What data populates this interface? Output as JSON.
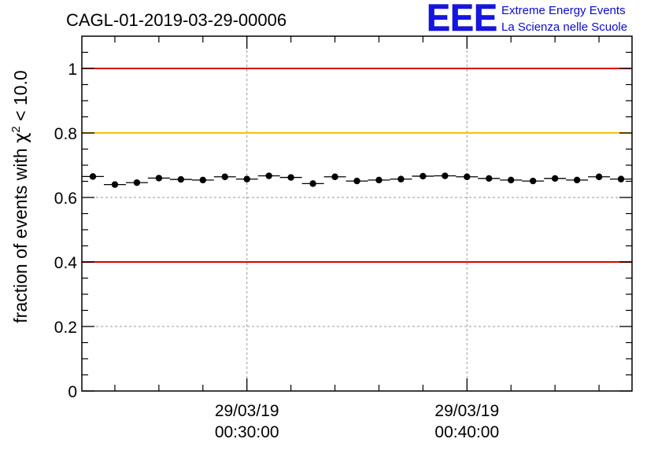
{
  "header": {
    "title": "CAGL-01-2019-03-29-00006",
    "logo_text": "EEE",
    "logo_line1": "Extreme Energy Events",
    "logo_line2": "La Scienza nelle Scuole"
  },
  "colors": {
    "accent_red": "#e00000",
    "accent_yellow": "#f5c200",
    "logo_blue": "#1515e6",
    "points": "#000000"
  },
  "chart_data": {
    "type": "scatter",
    "ylabel": "fraction of events with χ² < 10.0",
    "ylabel_parts": {
      "prefix": "fraction of events with ",
      "symbol": "χ",
      "sup": "2",
      "suffix": " < 10.0"
    },
    "ylim": [
      0,
      1.1
    ],
    "yticks": [
      0,
      0.2,
      0.4,
      0.6,
      0.8,
      1
    ],
    "ytick_labels": [
      "0",
      "0.2",
      "0.4",
      "0.6",
      "0.8",
      "1"
    ],
    "xlim_minutes": [
      22.5,
      47.5
    ],
    "xticks": [
      {
        "minutes": 30,
        "date": "29/03/19",
        "time": "00:30:00"
      },
      {
        "minutes": 40,
        "date": "29/03/19",
        "time": "00:40:00"
      }
    ],
    "grid": true,
    "reference_lines": [
      {
        "y": 1.0,
        "color": "#e00000"
      },
      {
        "y": 0.8,
        "color": "#f5c200"
      },
      {
        "y": 0.4,
        "color": "#e00000"
      }
    ],
    "bin_width_minutes": 1,
    "x_minutes": [
      23,
      24,
      25,
      26,
      27,
      28,
      29,
      30,
      31,
      32,
      33,
      34,
      35,
      36,
      37,
      38,
      39,
      40,
      41,
      42,
      43,
      44,
      45,
      46,
      47
    ],
    "y": [
      0.665,
      0.64,
      0.646,
      0.66,
      0.656,
      0.654,
      0.664,
      0.657,
      0.667,
      0.662,
      0.643,
      0.664,
      0.651,
      0.654,
      0.657,
      0.666,
      0.667,
      0.664,
      0.659,
      0.654,
      0.651,
      0.659,
      0.654,
      0.664,
      0.657
    ]
  }
}
